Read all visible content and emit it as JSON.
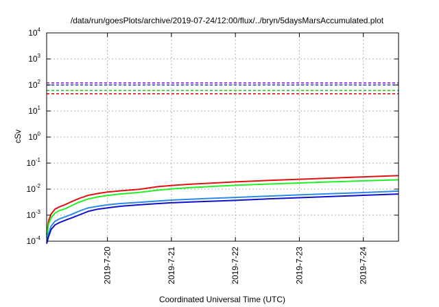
{
  "chart_data": {
    "type": "line",
    "title": "/data/run/goesPlots/archive/2019-07-24/12:00/flux/../bryn/5daysMarsAccumulated.plot",
    "xlabel": "Coordinated Universal Time (UTC)",
    "ylabel": "cSv",
    "yscale": "log",
    "ylim": [
      0.0001,
      10000
    ],
    "xlim": [
      19.05,
      24.55
    ],
    "grid": true,
    "y_ticks": [
      {
        "base": "10",
        "exp": "-4",
        "value": 0.0001
      },
      {
        "base": "10",
        "exp": "-3",
        "value": 0.001
      },
      {
        "base": "10",
        "exp": "-2",
        "value": 0.01
      },
      {
        "base": "10",
        "exp": "-1",
        "value": 0.1
      },
      {
        "base": "10",
        "exp": "0",
        "value": 1
      },
      {
        "base": "10",
        "exp": "1",
        "value": 10
      },
      {
        "base": "10",
        "exp": "2",
        "value": 100
      },
      {
        "base": "10",
        "exp": "3",
        "value": 1000
      },
      {
        "base": "10",
        "exp": "4",
        "value": 10000
      }
    ],
    "x_ticks": [
      {
        "label": "2019-7-20",
        "value": 20
      },
      {
        "label": "2019-7-21",
        "value": 21
      },
      {
        "label": "2019-7-22",
        "value": 22
      },
      {
        "label": "2019-7-23",
        "value": 23
      },
      {
        "label": "2019-7-24",
        "value": 24
      }
    ],
    "thresholds": [
      {
        "value": 120,
        "color": "#9400d3"
      },
      {
        "value": 100,
        "color": "#1e3cd8"
      },
      {
        "value": 62,
        "color": "#22cc22"
      },
      {
        "value": 46,
        "color": "#e01010"
      }
    ],
    "series": [
      {
        "color": "#e01010",
        "x": [
          19.05,
          19.08,
          19.12,
          19.18,
          19.25,
          19.35,
          19.45,
          19.55,
          19.7,
          19.85,
          20.0,
          20.2,
          20.5,
          20.8,
          21.0,
          21.3,
          21.6,
          22.0,
          22.5,
          23.0,
          23.5,
          24.0,
          24.55
        ],
        "y": [
          0.00018,
          0.0006,
          0.0011,
          0.0017,
          0.0021,
          0.0026,
          0.0034,
          0.0043,
          0.0058,
          0.0068,
          0.0077,
          0.0086,
          0.0099,
          0.0125,
          0.0138,
          0.0155,
          0.0168,
          0.019,
          0.0215,
          0.024,
          0.0265,
          0.0295,
          0.033
        ]
      },
      {
        "color": "#22ee22",
        "x": [
          19.05,
          19.08,
          19.12,
          19.18,
          19.25,
          19.35,
          19.45,
          19.55,
          19.7,
          19.85,
          20.0,
          20.2,
          20.5,
          20.8,
          21.0,
          21.3,
          21.6,
          22.0,
          22.5,
          23.0,
          23.5,
          24.0,
          24.55
        ],
        "y": [
          0.00013,
          0.00045,
          0.0008,
          0.0012,
          0.0015,
          0.0018,
          0.0024,
          0.0031,
          0.0042,
          0.005,
          0.0057,
          0.0065,
          0.0075,
          0.0092,
          0.0102,
          0.0114,
          0.0125,
          0.014,
          0.0157,
          0.0173,
          0.019,
          0.0208,
          0.0228
        ]
      },
      {
        "color": "#2a8ae8",
        "x": [
          19.05,
          19.08,
          19.12,
          19.18,
          19.25,
          19.35,
          19.45,
          19.55,
          19.7,
          19.85,
          20.0,
          20.2,
          20.5,
          20.8,
          21.0,
          21.3,
          21.6,
          22.0,
          22.5,
          23.0,
          23.5,
          24.0,
          24.55
        ],
        "y": [
          9e-05,
          0.0002,
          0.00038,
          0.00058,
          0.00072,
          0.00088,
          0.0011,
          0.0014,
          0.0019,
          0.0022,
          0.0025,
          0.0028,
          0.0031,
          0.0035,
          0.0038,
          0.0041,
          0.0044,
          0.0048,
          0.0054,
          0.006,
          0.0067,
          0.0074,
          0.0084
        ]
      },
      {
        "color": "#1010cc",
        "x": [
          19.05,
          19.08,
          19.12,
          19.18,
          19.25,
          19.35,
          19.45,
          19.55,
          19.7,
          19.85,
          20.0,
          20.2,
          20.5,
          20.8,
          21.0,
          21.3,
          21.6,
          22.0,
          22.5,
          23.0,
          23.5,
          24.0,
          24.55
        ],
        "y": [
          8e-05,
          0.00015,
          0.00028,
          0.00042,
          0.00052,
          0.00065,
          0.0008,
          0.001,
          0.0014,
          0.0017,
          0.0019,
          0.0022,
          0.0025,
          0.0028,
          0.003,
          0.0032,
          0.0034,
          0.0037,
          0.0042,
          0.0047,
          0.0052,
          0.0058,
          0.0065
        ]
      }
    ]
  }
}
